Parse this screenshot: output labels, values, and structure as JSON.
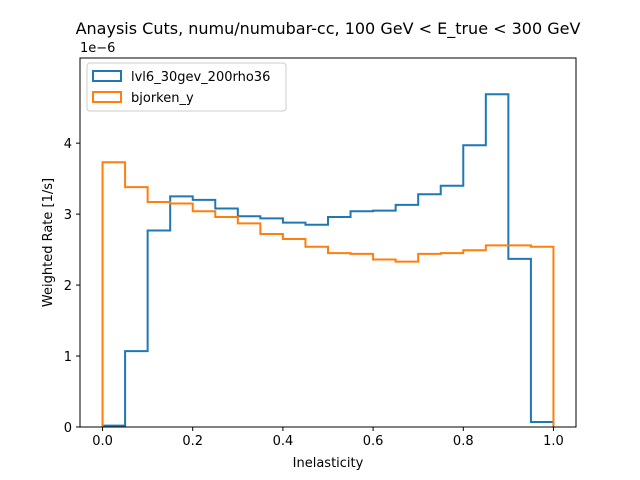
{
  "chart_data": {
    "type": "histogram-step",
    "title": "Anaysis Cuts, numu/numubar-cc, 100 GeV < E_true < 300 GeV",
    "xlabel": "Inelasticity",
    "ylabel": "Weighted Rate [1/s]",
    "y_offset_text": "1e−6",
    "xlim": [
      -0.05,
      1.05
    ],
    "ylim": [
      0,
      5.2
    ],
    "y_scale_factor": "1e-6",
    "xticks": [
      0.0,
      0.2,
      0.4,
      0.6,
      0.8,
      1.0
    ],
    "xtick_labels": [
      "0.0",
      "0.2",
      "0.4",
      "0.6",
      "0.8",
      "1.0"
    ],
    "yticks": [
      0,
      1,
      2,
      3,
      4
    ],
    "ytick_labels": [
      "0",
      "1",
      "2",
      "3",
      "4"
    ],
    "bin_edges": [
      0.0,
      0.05,
      0.1,
      0.15,
      0.2,
      0.25,
      0.3,
      0.35,
      0.4,
      0.45,
      0.5,
      0.55,
      0.6,
      0.65,
      0.7,
      0.75,
      0.8,
      0.85,
      0.9,
      0.95,
      1.0
    ],
    "legend_position": "upper-left",
    "grid": false,
    "series": [
      {
        "name": "lvl6_30gev_200rho36",
        "color": "#1f77b4",
        "values": [
          0.02,
          1.07,
          2.77,
          3.25,
          3.2,
          3.08,
          2.97,
          2.94,
          2.88,
          2.85,
          2.96,
          3.04,
          3.05,
          3.13,
          3.28,
          3.4,
          3.97,
          4.69,
          2.37,
          0.07
        ]
      },
      {
        "name": "bjorken_y",
        "color": "#ff7f0e",
        "values": [
          3.73,
          3.38,
          3.17,
          3.15,
          3.04,
          2.96,
          2.87,
          2.72,
          2.65,
          2.54,
          2.45,
          2.44,
          2.36,
          2.33,
          2.44,
          2.45,
          2.49,
          2.56,
          2.56,
          2.54
        ]
      }
    ]
  }
}
